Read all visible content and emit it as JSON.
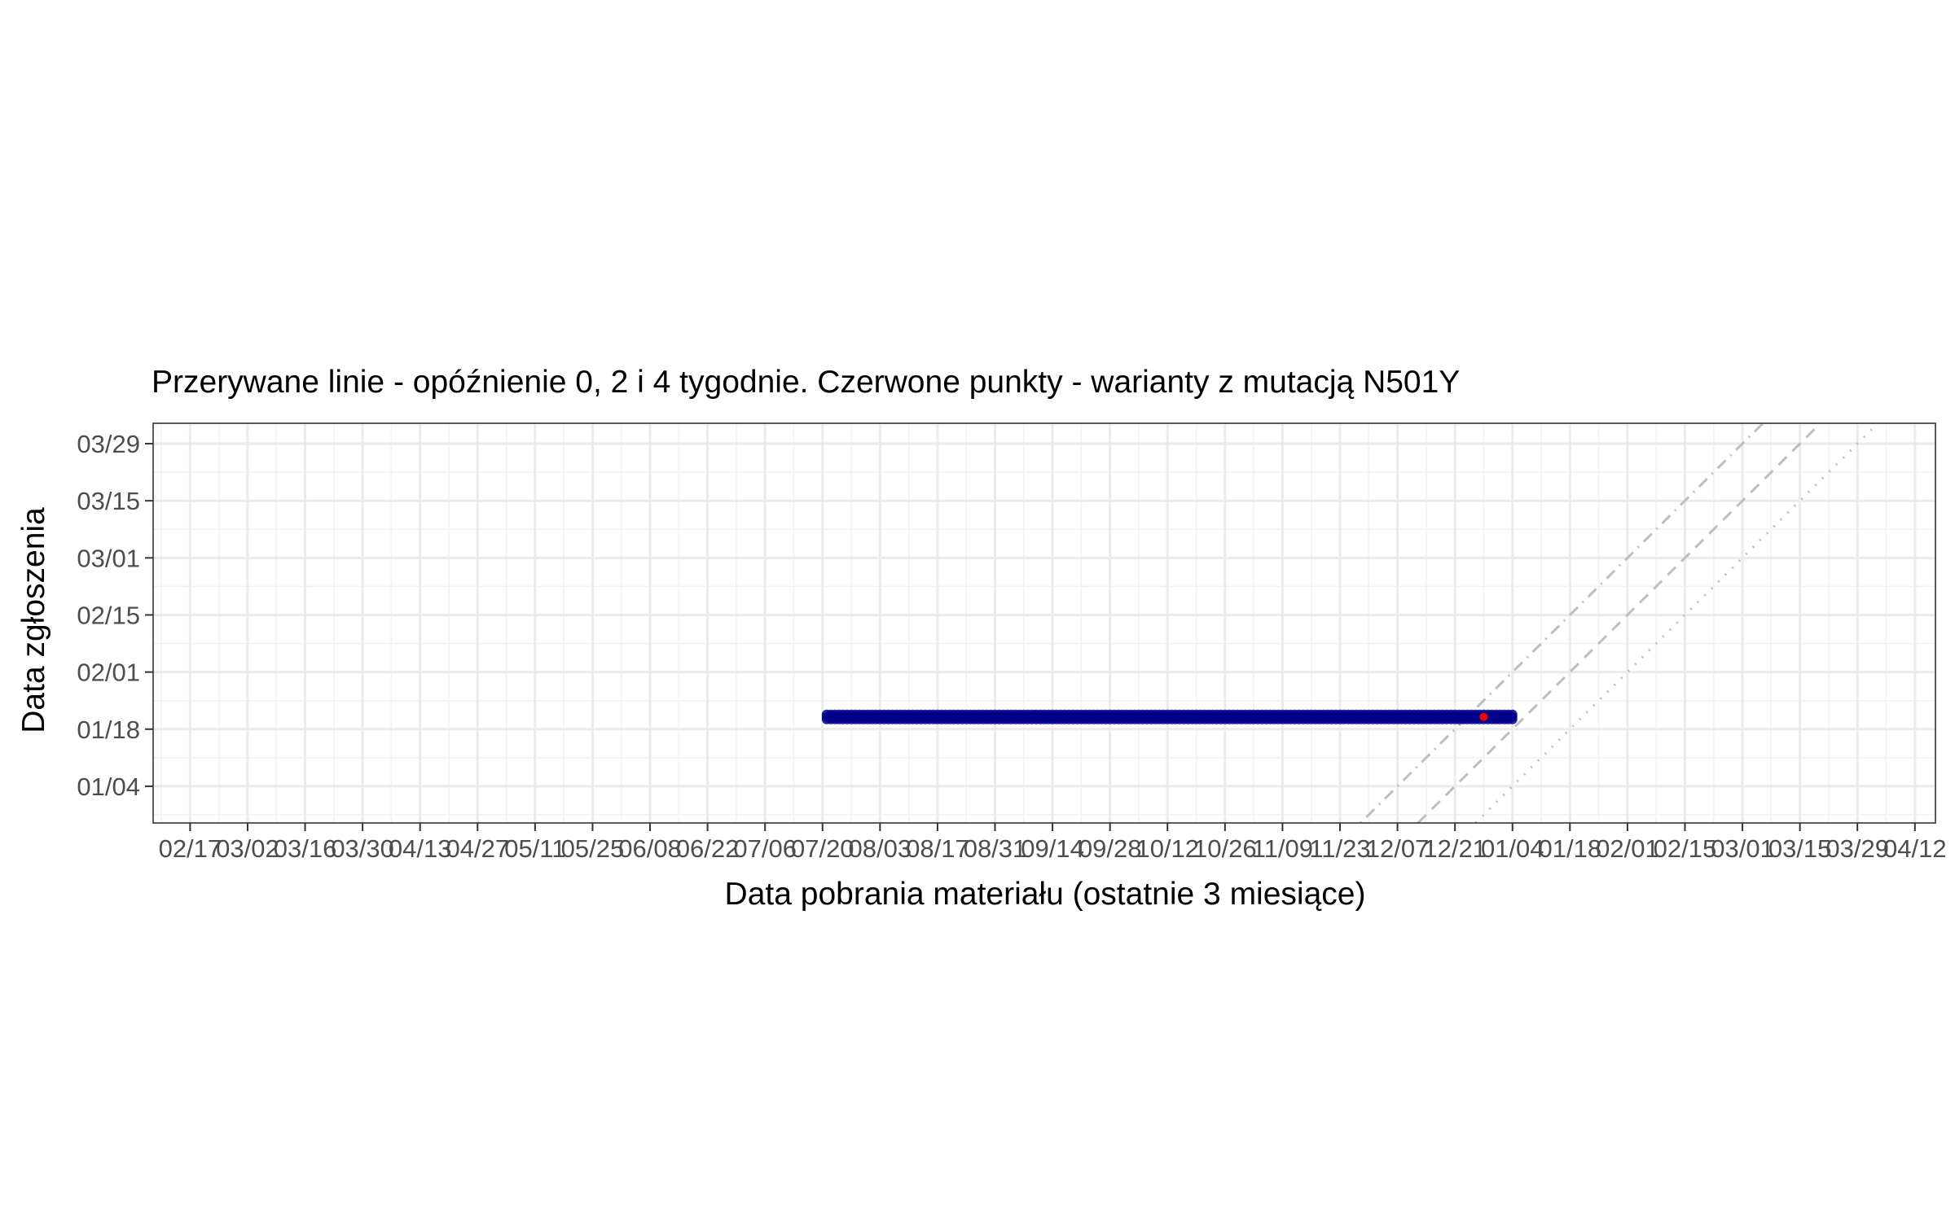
{
  "chart_data": {
    "type": "scatter",
    "title": "Przerywane linie - opóźnienie 0, 2 i 4 tygodnie. Czerwone punkty - warianty z mutacją N501Y",
    "xlabel": "Data pobrania materiału (ostatnie 3 miesiące)",
    "ylabel": "Data zgłoszenia",
    "x_ticks": [
      "02/17",
      "03/02",
      "03/16",
      "03/30",
      "04/13",
      "04/27",
      "05/11",
      "05/25",
      "06/08",
      "06/22",
      "07/06",
      "07/20",
      "08/03",
      "08/17",
      "08/31",
      "09/14",
      "09/28",
      "10/12",
      "10/26",
      "11/09",
      "11/23",
      "12/07",
      "12/21",
      "01/04",
      "01/18",
      "02/01",
      "02/15",
      "03/01",
      "03/15",
      "03/29",
      "04/12"
    ],
    "y_ticks": [
      "01/04",
      "01/18",
      "02/01",
      "02/15",
      "03/01",
      "03/15",
      "03/29"
    ],
    "xlim": [
      "2020-02-08",
      "2021-04-17"
    ],
    "ylim": [
      "2020-12-26",
      "2021-04-03"
    ],
    "grid": true,
    "colors": {
      "points": "#00008B",
      "n501y_points": "#FF0000",
      "reference_lines": "#BEBEBE"
    },
    "series": [
      {
        "name": "",
        "color": "#00008B",
        "marker": "point",
        "report_date": "2021-01-21",
        "sample_date_range": [
          "2020-07-21",
          "2021-01-04"
        ]
      },
      {
        "name": "N501Y",
        "color": "#FF0000",
        "marker": "point",
        "points": [
          {
            "x": "2020-12-28",
            "y": "2021-01-21"
          }
        ]
      }
    ],
    "reference_lines": [
      {
        "delay_weeks": 0,
        "linetype": "dotted"
      },
      {
        "delay_weeks": 2,
        "linetype": "dashed"
      },
      {
        "delay_weeks": 4,
        "linetype": "dotdash"
      }
    ]
  }
}
